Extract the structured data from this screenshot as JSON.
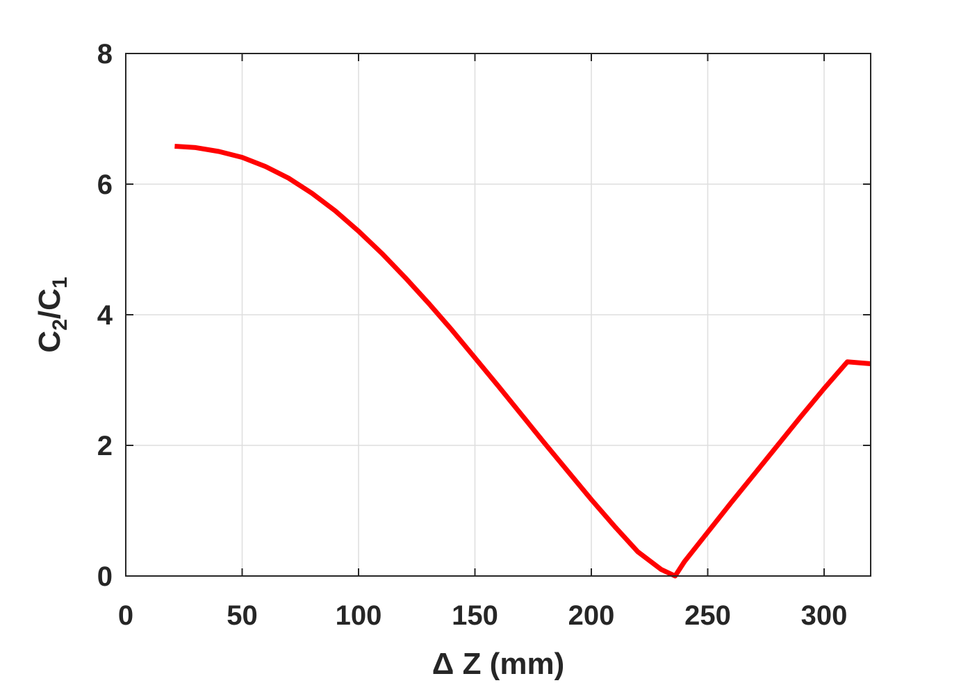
{
  "chart_data": {
    "type": "line",
    "xlabel": "Δ Z (mm)",
    "ylabel_main": "C",
    "ylabel_sub1": "2",
    "ylabel_slash": "/C",
    "ylabel_sub2": "1",
    "xlim": [
      0,
      320
    ],
    "ylim": [
      0,
      8
    ],
    "xticks": [
      0,
      50,
      100,
      150,
      200,
      250,
      300
    ],
    "yticks": [
      0,
      2,
      4,
      6,
      8
    ],
    "grid": true,
    "series": [
      {
        "color": "#ff0000",
        "x": [
          21,
          30,
          40,
          50,
          60,
          70,
          80,
          90,
          100,
          110,
          120,
          130,
          140,
          150,
          160,
          170,
          180,
          190,
          200,
          210,
          220,
          230,
          236,
          240,
          250,
          260,
          270,
          280,
          290,
          300,
          310,
          320
        ],
        "y": [
          6.58,
          6.56,
          6.5,
          6.41,
          6.27,
          6.09,
          5.86,
          5.59,
          5.28,
          4.94,
          4.57,
          4.18,
          3.77,
          3.34,
          2.91,
          2.47,
          2.03,
          1.6,
          1.17,
          0.76,
          0.37,
          0.1,
          0.0,
          0.22,
          0.67,
          1.12,
          1.56,
          2.0,
          2.44,
          2.87,
          3.28,
          3.25
        ]
      }
    ]
  }
}
